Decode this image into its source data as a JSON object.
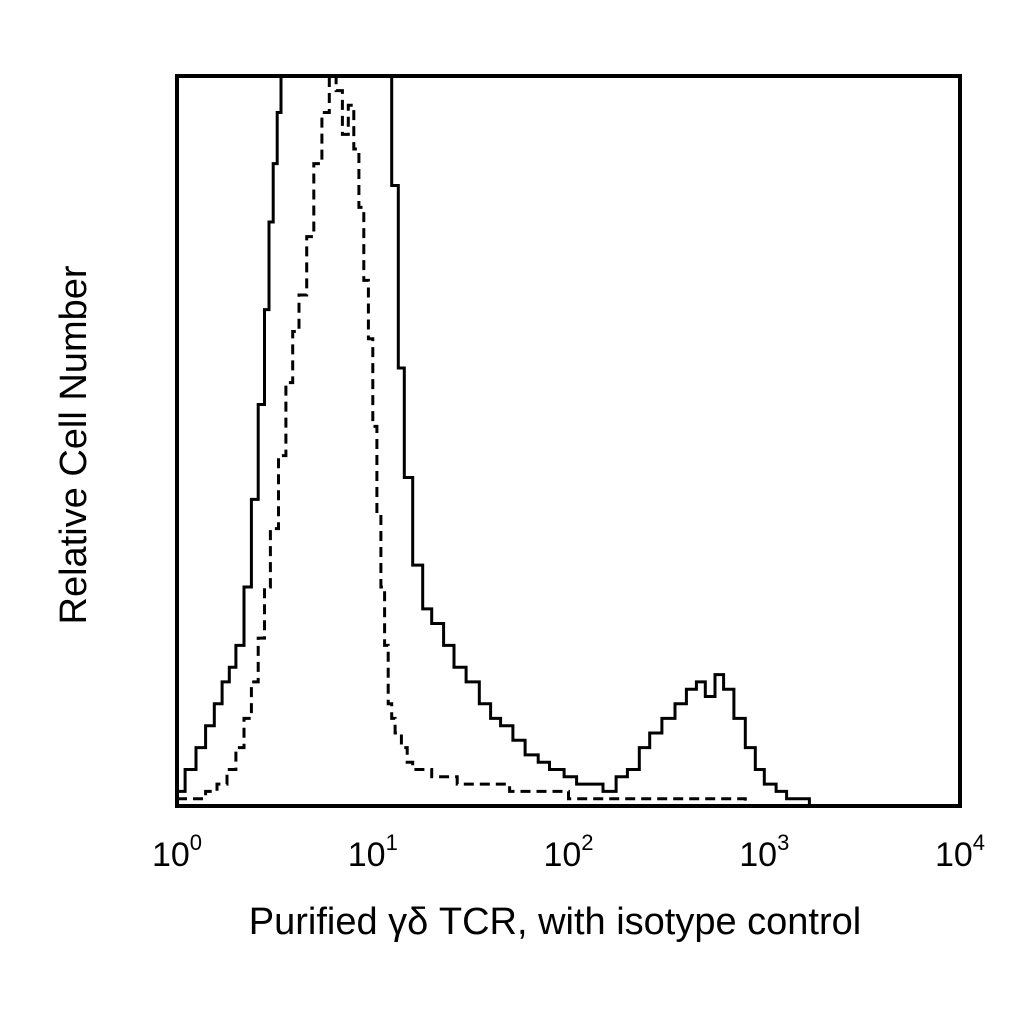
{
  "chart_data": {
    "type": "line",
    "title": "",
    "xlabel": "Purified γδ TCR, with isotype control",
    "ylabel": "Relative Cell Number",
    "x_scale": "log",
    "xlim": [
      1,
      10000
    ],
    "ylim": [
      0,
      100
    ],
    "ylim_note_free": true,
    "grid": false,
    "legend": "none",
    "x_ticks": [
      {
        "base": "10",
        "exp": "0",
        "value": 1
      },
      {
        "base": "10",
        "exp": "1",
        "value": 10
      },
      {
        "base": "10",
        "exp": "2",
        "value": 100
      },
      {
        "base": "10",
        "exp": "3",
        "value": 1000
      },
      {
        "base": "10",
        "exp": "4",
        "value": 10000
      }
    ],
    "series": [
      {
        "style": "solid",
        "color": "#000000",
        "x": [
          1.0,
          1.1,
          1.25,
          1.4,
          1.55,
          1.7,
          1.85,
          2.0,
          2.2,
          2.4,
          2.6,
          2.8,
          2.95,
          3.1,
          3.25,
          3.4,
          3.6,
          3.9,
          4.3,
          5.0,
          6.0,
          7.5,
          9.0,
          10.5,
          11.5,
          12.5,
          13.5,
          14.5,
          16.0,
          18.0,
          20.0,
          23.0,
          26.0,
          30.0,
          35.0,
          40.0,
          45.0,
          52.0,
          60.0,
          70.0,
          80.0,
          95.0,
          110.0,
          130.0,
          150.0,
          175.0,
          200.0,
          230.0,
          260.0,
          300.0,
          350.0,
          400.0,
          450.0,
          500.0,
          560.0,
          620.0,
          700.0,
          800.0,
          900.0,
          1000.0,
          1150.0,
          1300.0,
          1500.0,
          1700.0,
          1800.0
        ],
        "y": [
          2,
          5,
          8,
          11,
          14,
          17,
          19,
          22,
          30,
          42,
          55,
          68,
          80,
          88,
          95,
          100,
          100,
          100,
          100,
          100,
          100,
          100,
          100,
          100,
          100,
          85,
          60,
          45,
          33,
          27,
          25,
          22,
          19,
          17,
          14,
          12,
          11,
          9,
          7,
          6,
          5,
          4,
          3,
          3,
          2,
          4,
          5,
          8,
          10,
          12,
          14,
          16,
          17,
          15,
          18,
          16,
          12,
          8,
          5,
          3,
          2,
          1,
          1,
          0,
          0
        ]
      },
      {
        "style": "dashed",
        "color": "#000000",
        "x": [
          1.0,
          1.2,
          1.4,
          1.6,
          1.8,
          2.0,
          2.2,
          2.4,
          2.6,
          2.8,
          3.0,
          3.3,
          3.6,
          3.9,
          4.2,
          4.6,
          5.0,
          5.5,
          6.0,
          6.5,
          7.0,
          7.5,
          8.0,
          8.5,
          9.0,
          9.5,
          10.0,
          10.5,
          11.0,
          11.5,
          12.0,
          12.5,
          13.0,
          14.0,
          15.0,
          16.0,
          18.0,
          20.0,
          23.0,
          27.0,
          32.0,
          40.0,
          50.0,
          60.0,
          75.0,
          100.0,
          150.0,
          200.0,
          300.0,
          400.0,
          600.0,
          800.0,
          1000.0
        ],
        "y": [
          1,
          1,
          2,
          3,
          5,
          8,
          12,
          17,
          23,
          30,
          38,
          48,
          58,
          65,
          70,
          78,
          88,
          95,
          100,
          98,
          92,
          96,
          90,
          82,
          72,
          64,
          52,
          40,
          30,
          22,
          14,
          12,
          10,
          8,
          6,
          5,
          5,
          4,
          4,
          3,
          3,
          3,
          2,
          2,
          2,
          1,
          1,
          1,
          1,
          1,
          1,
          0,
          0
        ]
      }
    ]
  }
}
